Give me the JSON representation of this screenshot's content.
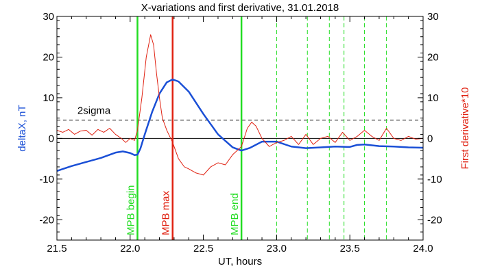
{
  "chart_data": {
    "type": "line",
    "title": "X-variations and first derivative, 31.01.2018",
    "xlabel": "UT, hours",
    "ylabel_left": "deltaX, nT",
    "ylabel_right": "First derivative*10",
    "xlim": [
      21.5,
      24.0
    ],
    "ylim": [
      -25,
      30
    ],
    "x_ticks": [
      21.5,
      22.0,
      22.5,
      23.0,
      23.5,
      24.0
    ],
    "x_tick_labels": [
      "21.5",
      "22.0",
      "22.5",
      "23.0",
      "23.5",
      "24.0"
    ],
    "y_ticks": [
      -20,
      -10,
      0,
      10,
      20,
      30
    ],
    "y_tick_labels": [
      "-20",
      "-10",
      "0",
      "10",
      "20",
      "30"
    ],
    "grid": false,
    "threshold": {
      "label": "2sigma",
      "value": 4.5
    },
    "zero_line": 0,
    "colors": {
      "deltaX": "#1a4fd6",
      "derivative": "#e02010",
      "mpb_boundary": "#22dd22",
      "mpb_max": "#e02010",
      "threshold": "#000000",
      "axes": "#000000",
      "ylabel_left": "#1a4fd6",
      "ylabel_right": "#e02010"
    },
    "markers": [
      {
        "x": 22.05,
        "label": "MPB begin",
        "style": "solid",
        "color": "#22dd22"
      },
      {
        "x": 22.29,
        "label": "MPB max",
        "style": "solid",
        "color": "#e02010"
      },
      {
        "x": 22.76,
        "label": "MPB end",
        "style": "solid",
        "color": "#22dd22"
      },
      {
        "x": 23.0,
        "label": "",
        "style": "dashed",
        "color": "#22dd22"
      },
      {
        "x": 23.21,
        "label": "",
        "style": "dashed",
        "color": "#22dd22"
      },
      {
        "x": 23.36,
        "label": "",
        "style": "dashed",
        "color": "#22dd22"
      },
      {
        "x": 23.46,
        "label": "",
        "style": "dashed",
        "color": "#22dd22"
      },
      {
        "x": 23.6,
        "label": "",
        "style": "dashed",
        "color": "#22dd22"
      },
      {
        "x": 23.75,
        "label": "",
        "style": "dashed",
        "color": "#22dd22"
      }
    ],
    "series": [
      {
        "key": "deltaX",
        "axis": "left",
        "x": [
          21.5,
          21.6,
          21.7,
          21.8,
          21.9,
          21.95,
          22.0,
          22.03,
          22.05,
          22.07,
          22.1,
          22.15,
          22.2,
          22.25,
          22.29,
          22.33,
          22.4,
          22.5,
          22.6,
          22.7,
          22.76,
          22.82,
          22.9,
          23.0,
          23.1,
          23.2,
          23.3,
          23.4,
          23.5,
          23.55,
          23.6,
          23.7,
          23.8,
          23.9,
          24.0
        ],
        "values": [
          -8,
          -6.8,
          -5.8,
          -4.8,
          -3.5,
          -3.2,
          -3.6,
          -4.1,
          -4.0,
          -2.5,
          1.0,
          6.5,
          11.0,
          13.8,
          14.5,
          14.0,
          11.5,
          6.0,
          1.0,
          -2.2,
          -3.0,
          -2.3,
          -0.8,
          -0.8,
          -2.0,
          -2.4,
          -2.2,
          -2.0,
          -2.1,
          -1.6,
          -1.5,
          -1.9,
          -2.0,
          -2.2,
          -2.3
        ]
      },
      {
        "key": "derivative",
        "axis": "right",
        "x": [
          21.5,
          21.54,
          21.58,
          21.62,
          21.66,
          21.7,
          21.74,
          21.78,
          21.82,
          21.86,
          21.9,
          21.94,
          21.97,
          22.0,
          22.03,
          22.05,
          22.08,
          22.11,
          22.14,
          22.16,
          22.18,
          22.2,
          22.22,
          22.25,
          22.29,
          22.33,
          22.37,
          22.4,
          22.45,
          22.5,
          22.55,
          22.6,
          22.65,
          22.7,
          22.76,
          22.8,
          22.83,
          22.86,
          22.9,
          22.95,
          23.0,
          23.05,
          23.1,
          23.15,
          23.2,
          23.25,
          23.3,
          23.35,
          23.4,
          23.45,
          23.5,
          23.55,
          23.6,
          23.65,
          23.7,
          23.75,
          23.8,
          23.85,
          23.9,
          23.95,
          24.0
        ],
        "values": [
          2,
          1.5,
          2.2,
          1.0,
          1.8,
          2.0,
          0.8,
          2.2,
          1.5,
          2.5,
          1.0,
          0,
          -1,
          0,
          -0.5,
          2,
          10,
          20,
          25.5,
          23,
          16,
          10,
          5,
          2,
          -1,
          -5,
          -7,
          -7.5,
          -8.5,
          -9,
          -7,
          -6,
          -6.5,
          -4,
          -2,
          2.5,
          4,
          3,
          0,
          -2,
          -1,
          -0.5,
          0.5,
          -1.5,
          1,
          -1.5,
          0,
          0.5,
          -1,
          1.5,
          -0.5,
          0.5,
          2,
          0.5,
          -0.5,
          2.5,
          0,
          -0.5,
          0.5,
          -0.2,
          0
        ]
      }
    ]
  }
}
